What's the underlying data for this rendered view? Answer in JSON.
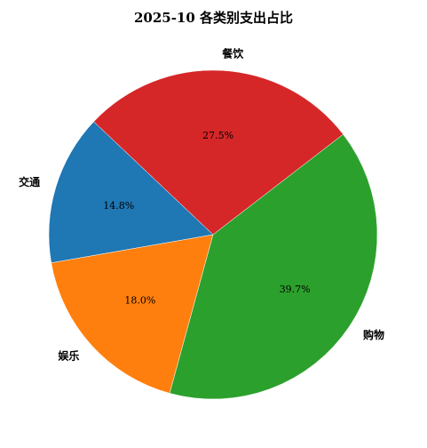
{
  "chart_data": {
    "type": "pie",
    "title": "2025-10 各类别支出占比",
    "categories": [
      "餐饮",
      "交通",
      "娱乐",
      "购物"
    ],
    "values": [
      27.5,
      14.8,
      18.0,
      39.7
    ],
    "percent_labels": [
      "27.5%",
      "14.8%",
      "18.0%",
      "39.7%"
    ],
    "colors": [
      "#d62728",
      "#1f77b4",
      "#ff7f0e",
      "#2ca02c"
    ],
    "start_angle_deg": 37.6,
    "direction": "counterclockwise",
    "legend": "none"
  }
}
